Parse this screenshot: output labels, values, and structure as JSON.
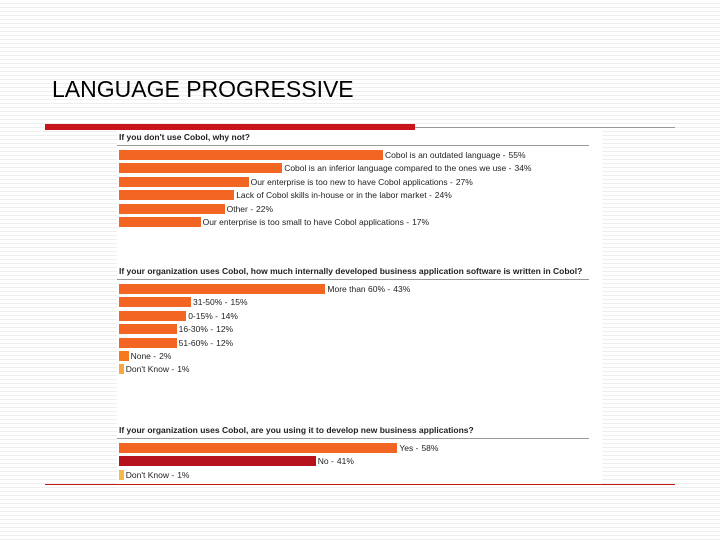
{
  "title": "LANGUAGE PROGRESSIVE",
  "chart_data": [
    {
      "type": "bar",
      "orientation": "horizontal",
      "title": "If you don't use Cobol, why not?",
      "categories": [
        "Cobol is an outdated language -",
        "Cobol is an inferior language compared to the ones we use -",
        "Our enterprise is too new to have Cobol applications -",
        "Lack of Cobol skills in-house or in the labor market -",
        "Other -",
        "Our enterprise is too small to have Cobol applications -"
      ],
      "values": [
        55,
        34,
        27,
        24,
        22,
        17
      ],
      "value_labels": [
        "55%",
        "34%",
        "27%",
        "24%",
        "22%",
        "17%"
      ],
      "colors": [
        "#f26522",
        "#f26522",
        "#f26522",
        "#f26522",
        "#f26522",
        "#f26522"
      ],
      "xlim": [
        0,
        100
      ]
    },
    {
      "type": "bar",
      "orientation": "horizontal",
      "title": "If your organization uses Cobol, how much internally developed business application software is written in Cobol?",
      "categories": [
        "More than 60% -",
        "31-50% -",
        "0-15% -",
        "16-30% -",
        "51-60% -",
        "None -",
        "Don't Know -"
      ],
      "values": [
        43,
        15,
        14,
        12,
        12,
        2,
        1
      ],
      "value_labels": [
        "43%",
        "15%",
        "14%",
        "12%",
        "12%",
        "2%",
        "1%"
      ],
      "colors": [
        "#f26522",
        "#f26522",
        "#f26522",
        "#f26522",
        "#f26522",
        "#f4791f",
        "#f7a640"
      ],
      "xlim": [
        0,
        100
      ]
    },
    {
      "type": "bar",
      "orientation": "horizontal",
      "title": "If your organization uses Cobol, are you using it to develop new business applications?",
      "categories": [
        "Yes -",
        "No -",
        "Don't Know -"
      ],
      "values": [
        58,
        41,
        1
      ],
      "value_labels": [
        "58%",
        "41%",
        "1%"
      ],
      "colors": [
        "#f26522",
        "#b5121b",
        "#f5b84a"
      ],
      "xlim": [
        0,
        100
      ]
    }
  ]
}
